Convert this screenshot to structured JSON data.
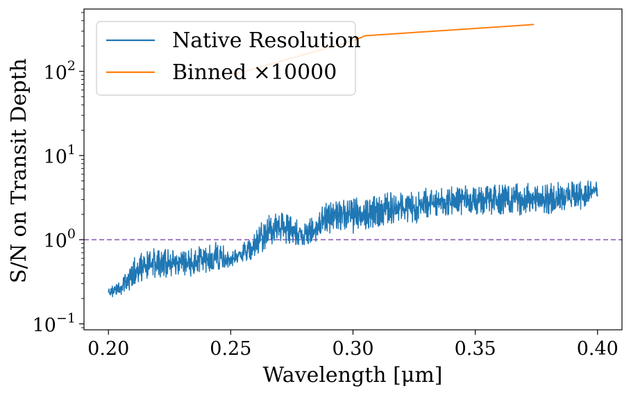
{
  "chart_data": {
    "type": "line",
    "xlabel": "Wavelength [μm]",
    "ylabel": "S/N on Transit Depth",
    "xlim": [
      0.19,
      0.41
    ],
    "ylim": [
      0.085,
      550
    ],
    "yscale": "log",
    "grid": false,
    "legend_position": "top-left",
    "x_ticks": [
      0.2,
      0.25,
      0.3,
      0.35,
      0.4
    ],
    "x_tick_labels": [
      "0.20",
      "0.25",
      "0.30",
      "0.35",
      "0.40"
    ],
    "y_ticks": [
      0.1,
      1,
      10,
      100
    ],
    "y_tick_labels": [
      {
        "base": "10",
        "exp": "−1"
      },
      {
        "base": "10",
        "exp": "0"
      },
      {
        "base": "10",
        "exp": "1"
      },
      {
        "base": "10",
        "exp": "2"
      }
    ],
    "reference_line": {
      "y": 1,
      "color": "#9467bd",
      "style": "dashed"
    },
    "series": [
      {
        "name": "Native Resolution",
        "color": "#1f77b4",
        "envelope": {
          "x": [
            0.2,
            0.205,
            0.21,
            0.215,
            0.22,
            0.225,
            0.23,
            0.235,
            0.24,
            0.245,
            0.25,
            0.255,
            0.26,
            0.265,
            0.27,
            0.275,
            0.28,
            0.285,
            0.29,
            0.295,
            0.3,
            0.305,
            0.31,
            0.315,
            0.32,
            0.325,
            0.33,
            0.335,
            0.34,
            0.345,
            0.35,
            0.355,
            0.36,
            0.365,
            0.37,
            0.375,
            0.38,
            0.385,
            0.39,
            0.395,
            0.4
          ],
          "y_low": [
            0.2,
            0.22,
            0.26,
            0.33,
            0.36,
            0.35,
            0.36,
            0.37,
            0.4,
            0.42,
            0.48,
            0.55,
            0.6,
            0.75,
            0.9,
            0.85,
            0.8,
            0.95,
            1.1,
            1.2,
            1.1,
            1.3,
            1.4,
            1.5,
            1.6,
            1.5,
            1.8,
            1.9,
            1.8,
            2.0,
            2.0,
            1.9,
            2.0,
            1.9,
            1.8,
            2.1,
            2.0,
            2.2,
            2.2,
            2.3,
            3.0
          ],
          "y_high": [
            0.28,
            0.32,
            0.6,
            0.75,
            0.8,
            0.78,
            0.8,
            0.82,
            0.9,
            0.95,
            0.7,
            0.9,
            1.2,
            2.0,
            2.1,
            2.0,
            1.6,
            2.0,
            3.2,
            3.1,
            3.3,
            3.2,
            3.5,
            3.8,
            3.6,
            4.0,
            4.1,
            4.2,
            4.3,
            4.4,
            4.5,
            4.6,
            4.5,
            4.6,
            4.7,
            4.8,
            4.9,
            5.0,
            5.0,
            5.1,
            5.5
          ]
        }
      },
      {
        "name": "Binned ×10000",
        "color": "#ff7f0e",
        "x": [
          0.25,
          0.3,
          0.305,
          0.374
        ],
        "y": [
          90,
          230,
          265,
          360
        ]
      }
    ]
  }
}
